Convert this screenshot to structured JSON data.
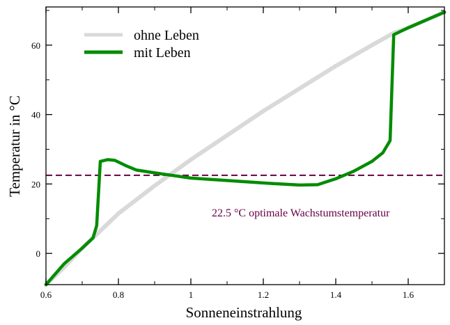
{
  "chart_data": {
    "type": "line",
    "xlabel": "Sonneneinstrahlung",
    "ylabel": "Temperatur  in °C",
    "xlim": [
      0.6,
      1.7
    ],
    "ylim": [
      -9,
      71
    ],
    "xticks": [
      0.6,
      0.8,
      1.0,
      1.2,
      1.4,
      1.6
    ],
    "xtick_labels": [
      "0.6",
      "0.8",
      "1",
      "1.2",
      "1.4",
      "1.6"
    ],
    "yticks": [
      0,
      20,
      40,
      60
    ],
    "ytick_labels": [
      "0",
      "20",
      "40",
      "60"
    ],
    "grid": false,
    "legend_position": "top-left",
    "series": [
      {
        "name": "ohne Leben",
        "color": "#d9d9d9",
        "points": [
          [
            0.6,
            -9
          ],
          [
            0.65,
            -4
          ],
          [
            0.7,
            1.5
          ],
          [
            0.75,
            6.5
          ],
          [
            0.8,
            11.5
          ],
          [
            0.85,
            15.5
          ],
          [
            0.9,
            19.5
          ],
          [
            1.0,
            27
          ],
          [
            1.1,
            34
          ],
          [
            1.2,
            41
          ],
          [
            1.3,
            47.5
          ],
          [
            1.4,
            54
          ],
          [
            1.5,
            60
          ],
          [
            1.56,
            63.5
          ],
          [
            1.6,
            65
          ],
          [
            1.7,
            69.5
          ]
        ]
      },
      {
        "name": "mit Leben",
        "color": "#008c00",
        "points": [
          [
            0.6,
            -9
          ],
          [
            0.65,
            -3
          ],
          [
            0.7,
            1.5
          ],
          [
            0.73,
            4.5
          ],
          [
            0.74,
            8
          ],
          [
            0.75,
            26.5
          ],
          [
            0.77,
            27
          ],
          [
            0.79,
            26.8
          ],
          [
            0.82,
            25.3
          ],
          [
            0.85,
            24
          ],
          [
            0.9,
            23.2
          ],
          [
            1.0,
            21.7
          ],
          [
            1.1,
            21.0
          ],
          [
            1.2,
            20.3
          ],
          [
            1.3,
            19.7
          ],
          [
            1.35,
            19.8
          ],
          [
            1.4,
            21.5
          ],
          [
            1.45,
            23.7
          ],
          [
            1.5,
            26.5
          ],
          [
            1.53,
            29
          ],
          [
            1.55,
            32.5
          ],
          [
            1.56,
            63
          ],
          [
            1.6,
            65
          ],
          [
            1.7,
            69.5
          ]
        ]
      }
    ],
    "reference_line": {
      "y": 22.5,
      "color": "#660044",
      "label": "22.5 °C optimale Wachstumstemperatur"
    }
  }
}
